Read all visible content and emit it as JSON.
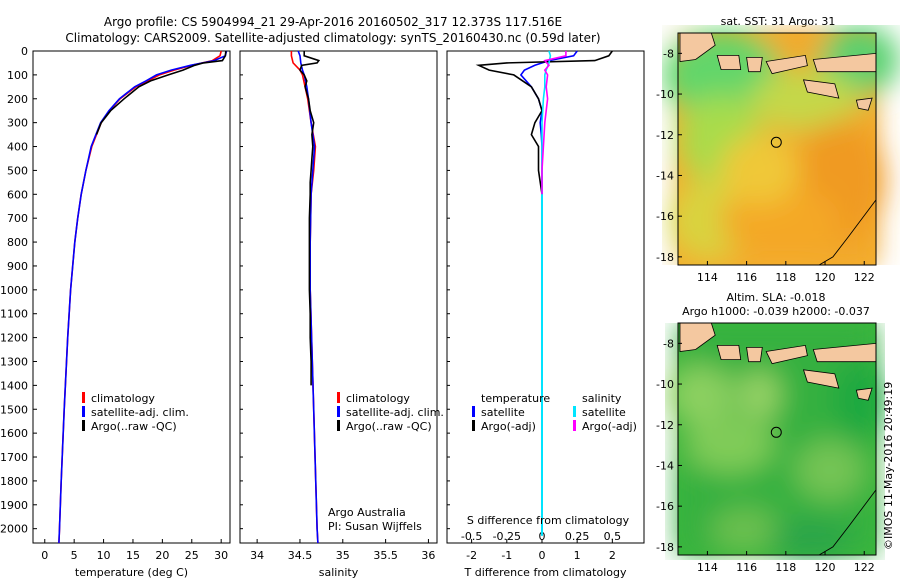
{
  "header": {
    "title_line1": "Argo profile: CS 5904994_21 29-Apr-2016 20160502_317 12.373S 117.516E",
    "title_line2": "Climatology: CARS2009. Satellite-adjusted climatology: synTS_20160430.nc (0.59d later)"
  },
  "colors": {
    "climatology": "#ff0000",
    "satellite": "#0000ff",
    "argo": "#000000",
    "sal_satellite": "#00e5ff",
    "sal_argo": "#ff00ff",
    "land": "#f4c8a0"
  },
  "depth_axis": {
    "ticks": [
      "0",
      "100",
      "200",
      "300",
      "400",
      "500",
      "600",
      "700",
      "800",
      "900",
      "1000",
      "1100",
      "1200",
      "1300",
      "1400",
      "1500",
      "1600",
      "1700",
      "1800",
      "1900",
      "2000"
    ],
    "range": [
      0,
      2060
    ]
  },
  "chart_data": [
    {
      "type": "line",
      "name": "temperature-panel",
      "xlabel": "temperature (deg C)",
      "xlim": [
        -2,
        31.5
      ],
      "xticks": [
        "0",
        "5",
        "10",
        "15",
        "20",
        "25",
        "30"
      ],
      "ylim": [
        0,
        2060
      ],
      "legend": [
        "climatology",
        "satellite-adj. clim.",
        "Argo(..raw -QC)"
      ],
      "series": [
        {
          "name": "climatology",
          "depth": [
            0,
            20,
            40,
            60,
            80,
            100,
            125,
            150,
            200,
            250,
            300,
            400,
            500,
            600,
            700,
            800,
            1000,
            1200,
            1500,
            1800,
            2000,
            2060
          ],
          "values": [
            30.0,
            29.8,
            28.5,
            25.0,
            22.0,
            19.5,
            17.5,
            15.5,
            12.8,
            11.0,
            9.6,
            8.0,
            7.0,
            6.2,
            5.6,
            5.1,
            4.4,
            3.9,
            3.3,
            2.8,
            2.5,
            2.4
          ]
        },
        {
          "name": "satellite-adj. clim.",
          "depth": [
            0,
            20,
            40,
            60,
            80,
            100,
            125,
            150,
            200,
            250,
            300,
            400,
            500,
            600,
            700,
            800,
            1000,
            1200,
            1500,
            1800,
            2000,
            2060
          ],
          "values": [
            30.9,
            30.7,
            28.8,
            24.8,
            21.5,
            19.0,
            17.2,
            15.3,
            12.7,
            10.9,
            9.5,
            7.9,
            7.0,
            6.2,
            5.6,
            5.1,
            4.4,
            3.9,
            3.3,
            2.8,
            2.5,
            2.4
          ]
        },
        {
          "name": "Argo(..raw -QC)",
          "depth": [
            0,
            20,
            40,
            50,
            60,
            80,
            100,
            125,
            150,
            200,
            250,
            300,
            350
          ],
          "values": [
            30.8,
            30.7,
            30.2,
            27.0,
            25.5,
            23.5,
            21.0,
            18.0,
            16.0,
            13.5,
            11.2,
            9.6,
            8.8
          ]
        }
      ]
    },
    {
      "type": "line",
      "name": "salinity-panel",
      "xlabel": "salinity",
      "xlim": [
        33.8,
        36.1
      ],
      "xticks": [
        "34",
        "34.5",
        "35",
        "35.5",
        "36"
      ],
      "ylim": [
        0,
        2060
      ],
      "legend": [
        "climatology",
        "satellite-adj. clim.",
        "Argo(..raw -QC)"
      ],
      "annotation_lines": [
        "Argo Australia",
        "PI: Susan Wijffels"
      ],
      "series": [
        {
          "name": "climatology",
          "depth": [
            0,
            20,
            50,
            80,
            100,
            150,
            200,
            300,
            400,
            500,
            600,
            800,
            1000,
            1500,
            2000,
            2060
          ],
          "values": [
            34.4,
            34.4,
            34.42,
            34.5,
            34.53,
            34.56,
            34.59,
            34.63,
            34.68,
            34.66,
            34.63,
            34.62,
            34.62,
            34.66,
            34.7,
            34.71
          ]
        },
        {
          "name": "satellite-adj. clim.",
          "depth": [
            0,
            20,
            50,
            80,
            100,
            150,
            200,
            300,
            400,
            500,
            600,
            800,
            1000,
            1500,
            2000,
            2060
          ],
          "values": [
            34.48,
            34.5,
            34.51,
            34.53,
            34.55,
            34.58,
            34.6,
            34.63,
            34.67,
            34.65,
            34.63,
            34.62,
            34.62,
            34.66,
            34.7,
            34.71
          ]
        },
        {
          "name": "Argo(..raw -QC)",
          "depth": [
            0,
            20,
            40,
            50,
            60,
            80,
            100,
            125,
            150,
            200,
            250,
            300,
            350,
            400,
            450,
            500,
            550,
            600,
            700,
            800,
            900,
            1000,
            1100,
            1200,
            1300,
            1400
          ],
          "values": [
            34.55,
            34.55,
            34.72,
            34.7,
            34.52,
            34.5,
            34.55,
            34.58,
            34.56,
            34.6,
            34.62,
            34.66,
            34.64,
            34.65,
            34.64,
            34.63,
            34.62,
            34.62,
            34.61,
            34.61,
            34.61,
            34.61,
            34.62,
            34.62,
            34.63,
            34.63
          ]
        }
      ]
    },
    {
      "type": "line",
      "name": "difference-panel",
      "xlabel_bottom": "T difference from climatology",
      "xlabel_top": "S difference from climatology",
      "xlim": [
        -2.7,
        2.9
      ],
      "xticks_T": [
        "-2",
        "-1",
        "0",
        "1",
        "2"
      ],
      "xticks_S": [
        "-0.5",
        "-0.25",
        "0",
        "0.25",
        "0.5"
      ],
      "ylim": [
        0,
        2060
      ],
      "legend_temperature": {
        "title": "temperature",
        "items": [
          "satellite",
          "Argo(-adj)"
        ]
      },
      "legend_salinity": {
        "title": "salinity",
        "items": [
          "satellite",
          "Argo(-adj)"
        ]
      },
      "series": [
        {
          "name": "T satellite",
          "depth": [
            0,
            20,
            40,
            60,
            80,
            100,
            150,
            200,
            250,
            300,
            350,
            400,
            500,
            600,
            800,
            1000,
            1500,
            2000
          ],
          "values": [
            1.0,
            0.9,
            0.2,
            -0.2,
            -0.5,
            -0.6,
            -0.3,
            -0.1,
            0.0,
            -0.05,
            -0.02,
            0.0,
            0.0,
            0.0,
            0.0,
            0.0,
            0.0,
            0.0
          ]
        },
        {
          "name": "T Argo(-adj)",
          "depth": [
            0,
            20,
            40,
            50,
            60,
            80,
            100,
            150,
            200,
            250,
            300,
            350,
            400,
            500,
            600,
            700,
            800,
            1000,
            1200,
            1400
          ],
          "values": [
            2.0,
            1.9,
            1.5,
            -1.0,
            -1.8,
            -1.5,
            -0.8,
            -0.3,
            -0.1,
            0.0,
            -0.2,
            -0.3,
            -0.1,
            -0.1,
            0.0,
            0.0,
            0.0,
            0.0,
            0.0,
            0.0
          ]
        },
        {
          "name": "S satellite",
          "depth": [
            0,
            20,
            50,
            80,
            100,
            150,
            200,
            300,
            500,
            800,
            1000,
            1500,
            2000
          ],
          "values": [
            0.05,
            0.06,
            0.05,
            0.03,
            0.02,
            0.02,
            0.01,
            0.0,
            0.0,
            0.0,
            0.0,
            0.0,
            0.0
          ]
        },
        {
          "name": "S Argo(-adj)",
          "depth": [
            0,
            20,
            40,
            60,
            80,
            100,
            150,
            200,
            250,
            300,
            400,
            500,
            600,
            800,
            1000,
            1200,
            1400
          ],
          "values": [
            0.17,
            0.17,
            0.02,
            0.05,
            0.02,
            0.04,
            0.03,
            0.04,
            0.03,
            0.02,
            0.01,
            0.0,
            0.0,
            0.0,
            0.0,
            0.0,
            0.0
          ]
        }
      ]
    },
    {
      "type": "heatmap",
      "name": "sst-map",
      "title": "sat. SST: 31 Argo: 31",
      "xticks": [
        "114",
        "116",
        "118",
        "120",
        "122"
      ],
      "yticks": [
        "-8",
        "-10",
        "-12",
        "-14",
        "-16",
        "-18"
      ],
      "xlim": [
        112.5,
        122.6
      ],
      "ylim": [
        -18.4,
        -7.0
      ],
      "marker": {
        "lon": 117.516,
        "lat": -12.373
      }
    },
    {
      "type": "heatmap",
      "name": "sla-map",
      "title_line1": "Altim. SLA: -0.018",
      "title_line2": "Argo h1000: -0.039 h2000: -0.037",
      "xticks": [
        "114",
        "116",
        "118",
        "120",
        "122"
      ],
      "yticks": [
        "-8",
        "-10",
        "-12",
        "-14",
        "-16",
        "-18"
      ],
      "xlim": [
        112.5,
        122.6
      ],
      "ylim": [
        -18.4,
        -7.0
      ],
      "marker": {
        "lon": 117.516,
        "lat": -12.373
      }
    }
  ],
  "footer": {
    "credit": "©IMOS 11-May-2016 20:49:19"
  }
}
